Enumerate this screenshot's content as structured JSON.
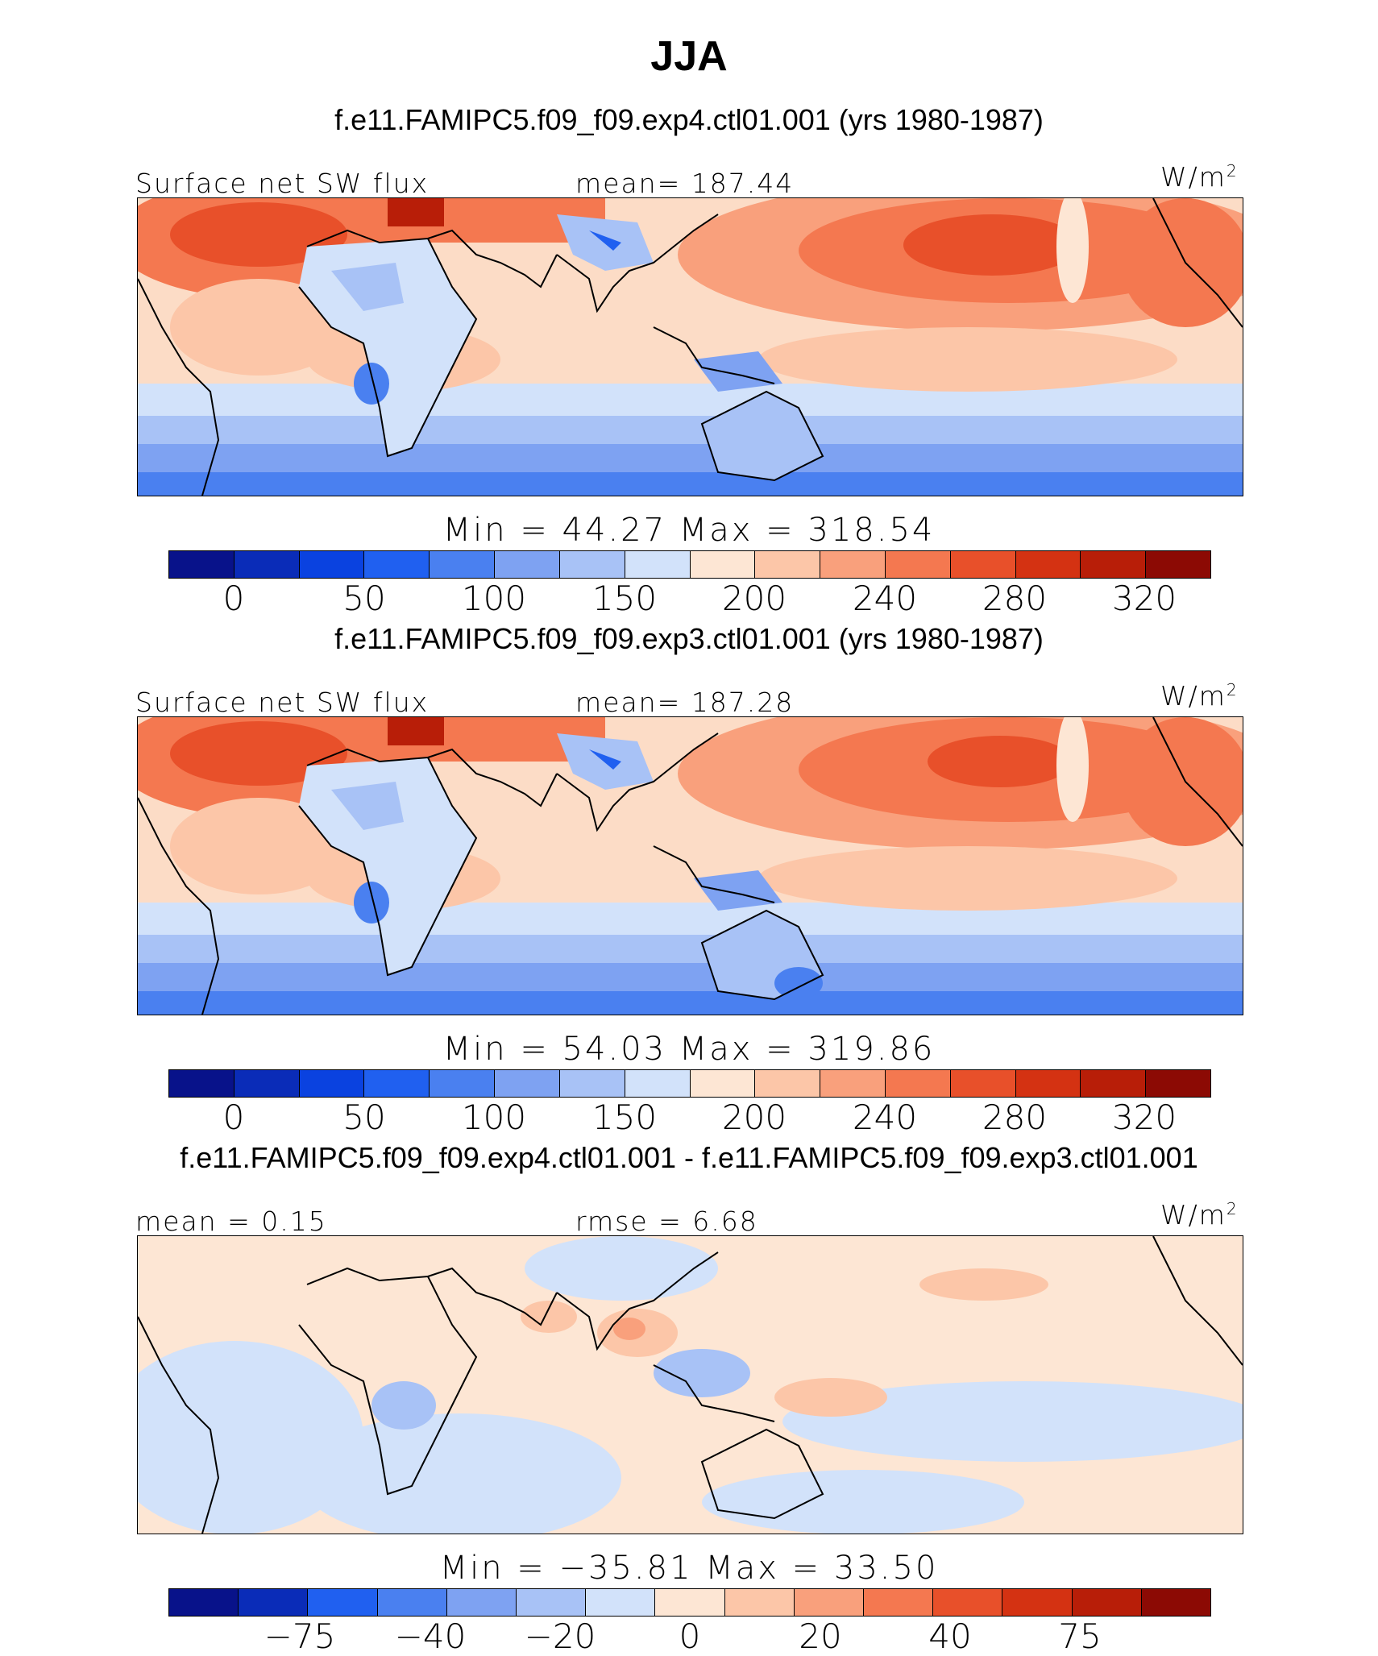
{
  "title": "JJA",
  "panels": [
    {
      "case_title": "f.e11.FAMIPC5.f09_f09.exp4.ctl01.001 (yrs 1980-1987)",
      "left_label": "Surface net SW flux",
      "center_label": "mean= 187.44",
      "units": "W/m",
      "units_sup": "2",
      "minmax": "Min =  44.27 Max = 318.54",
      "tick_labels": [
        "0",
        "50",
        "100",
        "150",
        "200",
        "240",
        "280",
        "320"
      ]
    },
    {
      "case_title": "f.e11.FAMIPC5.f09_f09.exp3.ctl01.001 (yrs 1980-1987)",
      "left_label": "Surface net SW flux",
      "center_label": "mean= 187.28",
      "units": "W/m",
      "units_sup": "2",
      "minmax": "Min =  54.03 Max = 319.86",
      "tick_labels": [
        "0",
        "50",
        "100",
        "150",
        "200",
        "240",
        "280",
        "320"
      ]
    },
    {
      "case_title": "f.e11.FAMIPC5.f09_f09.exp4.ctl01.001 - f.e11.FAMIPC5.f09_f09.exp3.ctl01.001",
      "left_label": "mean =   0.15",
      "center_label": "rmse =   6.68",
      "units": "W/m",
      "units_sup": "2",
      "minmax": "Min = −35.81 Max =  33.50",
      "tick_labels": [
        "−75",
        "−40",
        "−20",
        "0",
        "20",
        "40",
        "75"
      ]
    }
  ],
  "colorbar_colors": [
    "#08128a",
    "#0a2cb8",
    "#0a42e0",
    "#2060f0",
    "#4a80f0",
    "#7ea2f2",
    "#a8c2f6",
    "#d2e2fa",
    "#fde6d4",
    "#fcc6a8",
    "#f9a07c",
    "#f47850",
    "#e8502a",
    "#d43212",
    "#b81e08",
    "#8c0a04"
  ]
}
